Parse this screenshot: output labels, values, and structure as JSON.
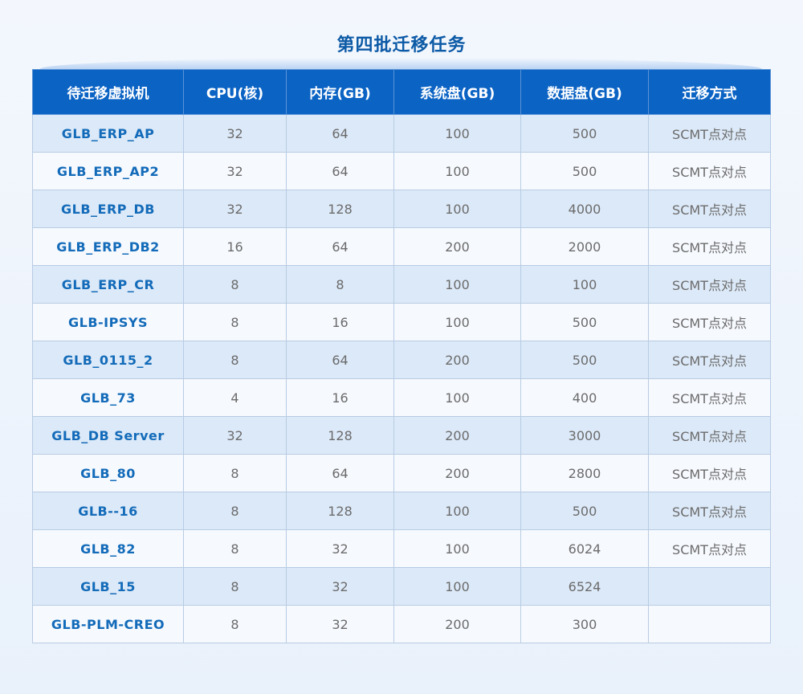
{
  "title": "第四批迁移任务",
  "columns": [
    "待迁移虚拟机",
    "CPU(核)",
    "内存(GB)",
    "系统盘(GB)",
    "数据盘(GB)",
    "迁移方式"
  ],
  "rows": [
    [
      "GLB_ERP_AP",
      "32",
      "64",
      "100",
      "500",
      "SCMT点对点"
    ],
    [
      "GLB_ERP_AP2",
      "32",
      "64",
      "100",
      "500",
      "SCMT点对点"
    ],
    [
      "GLB_ERP_DB",
      "32",
      "128",
      "100",
      "4000",
      "SCMT点对点"
    ],
    [
      "GLB_ERP_DB2",
      "16",
      "64",
      "200",
      "2000",
      "SCMT点对点"
    ],
    [
      "GLB_ERP_CR",
      "8",
      "8",
      "100",
      "100",
      "SCMT点对点"
    ],
    [
      "GLB-IPSYS",
      "8",
      "16",
      "100",
      "500",
      "SCMT点对点"
    ],
    [
      "GLB_0115_2",
      "8",
      "64",
      "200",
      "500",
      "SCMT点对点"
    ],
    [
      "GLB_73",
      "4",
      "16",
      "100",
      "400",
      "SCMT点对点"
    ],
    [
      "GLB_DB Server",
      "32",
      "128",
      "200",
      "3000",
      "SCMT点对点"
    ],
    [
      "GLB_80",
      "8",
      "64",
      "200",
      "2800",
      "SCMT点对点"
    ],
    [
      "GLB--16",
      "8",
      "128",
      "100",
      "500",
      "SCMT点对点"
    ],
    [
      "GLB_82",
      "8",
      "32",
      "100",
      "6024",
      "SCMT点对点"
    ],
    [
      "GLB_15",
      "8",
      "32",
      "100",
      "6524",
      ""
    ],
    [
      "GLB-PLM-CREO",
      "8",
      "32",
      "200",
      "300",
      ""
    ]
  ]
}
